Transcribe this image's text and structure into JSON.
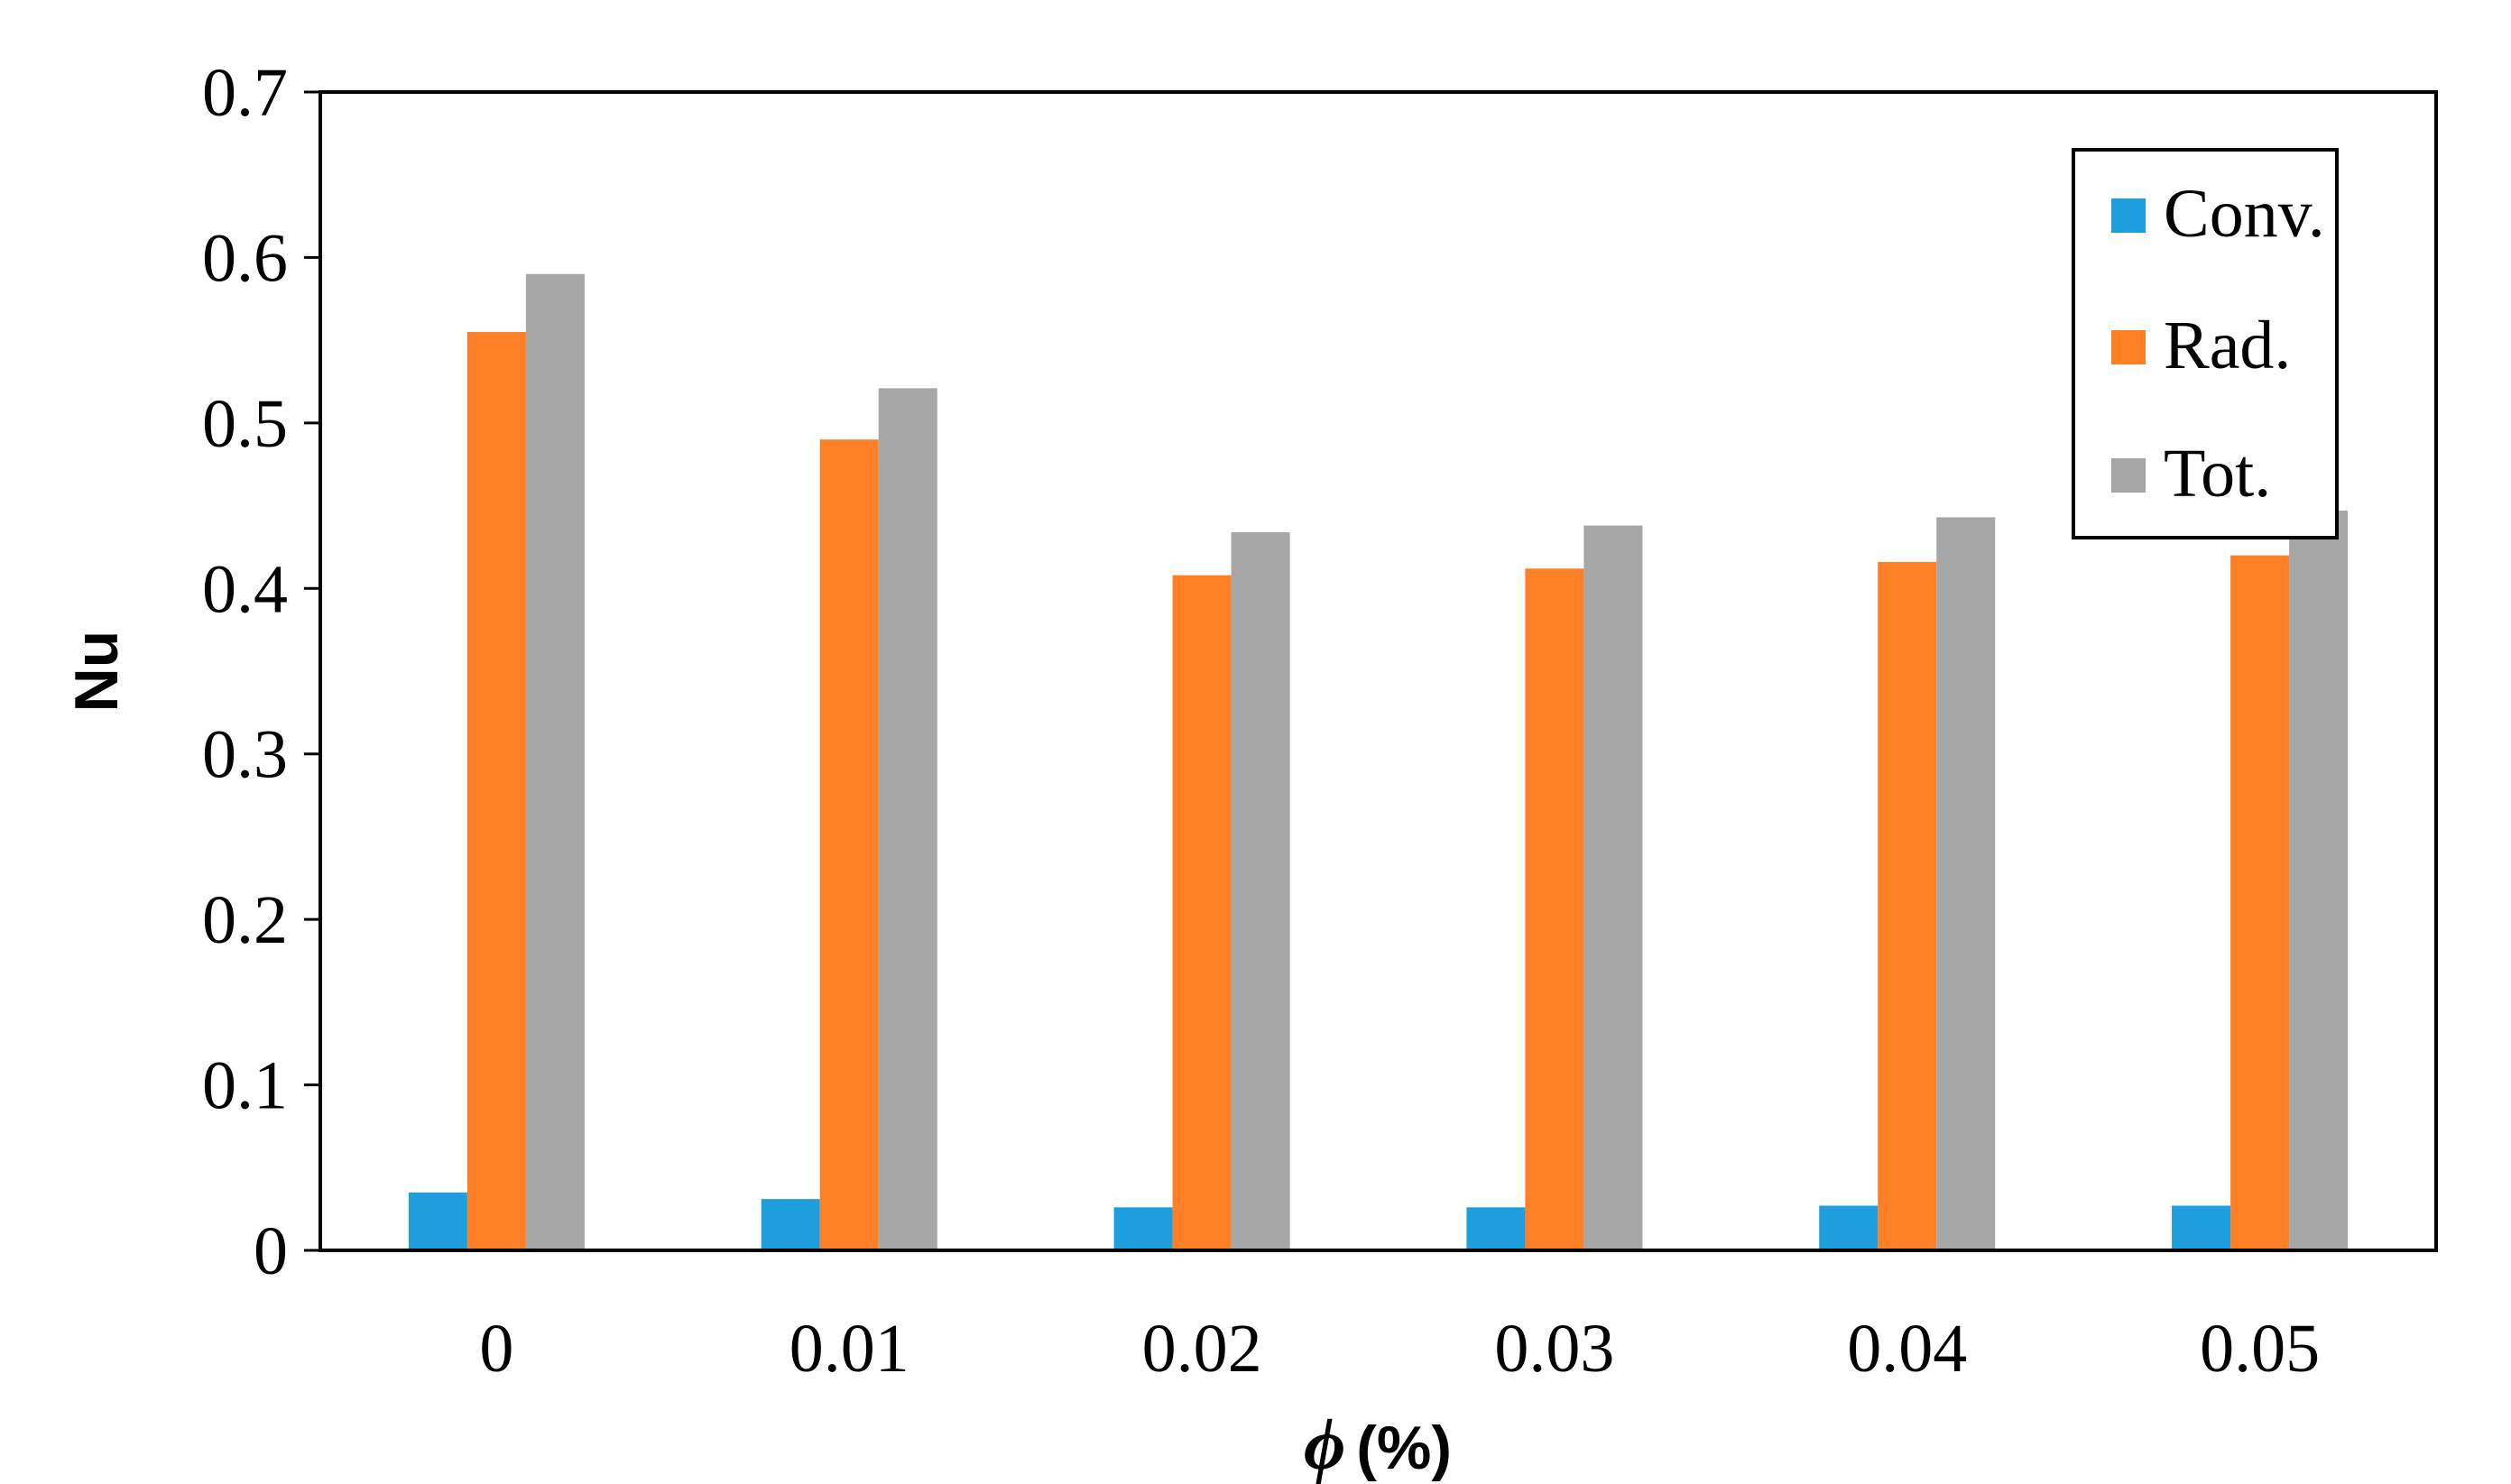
{
  "chart_data": {
    "type": "bar",
    "title": "",
    "xlabel_symbol": "ϕ",
    "xlabel_unit": "(%)",
    "ylabel": "Nu",
    "categories": [
      "0",
      "0.01",
      "0.02",
      "0.03",
      "0.04",
      "0.05"
    ],
    "ylim": [
      0,
      0.7
    ],
    "yticks": [
      "0",
      "0.1",
      "0.2",
      "0.3",
      "0.4",
      "0.5",
      "0.6",
      "0.7"
    ],
    "grid": false,
    "legend_position": "top-right",
    "series": [
      {
        "name": "Conv.",
        "color": "#1f9ede",
        "values": [
          0.035,
          0.031,
          0.026,
          0.026,
          0.027,
          0.027
        ]
      },
      {
        "name": "Rad.",
        "color": "#ff7f27",
        "values": [
          0.555,
          0.49,
          0.408,
          0.412,
          0.416,
          0.42
        ]
      },
      {
        "name": "Tot.",
        "color": "#a6a6a6",
        "values": [
          0.59,
          0.521,
          0.434,
          0.438,
          0.443,
          0.447
        ]
      }
    ]
  }
}
